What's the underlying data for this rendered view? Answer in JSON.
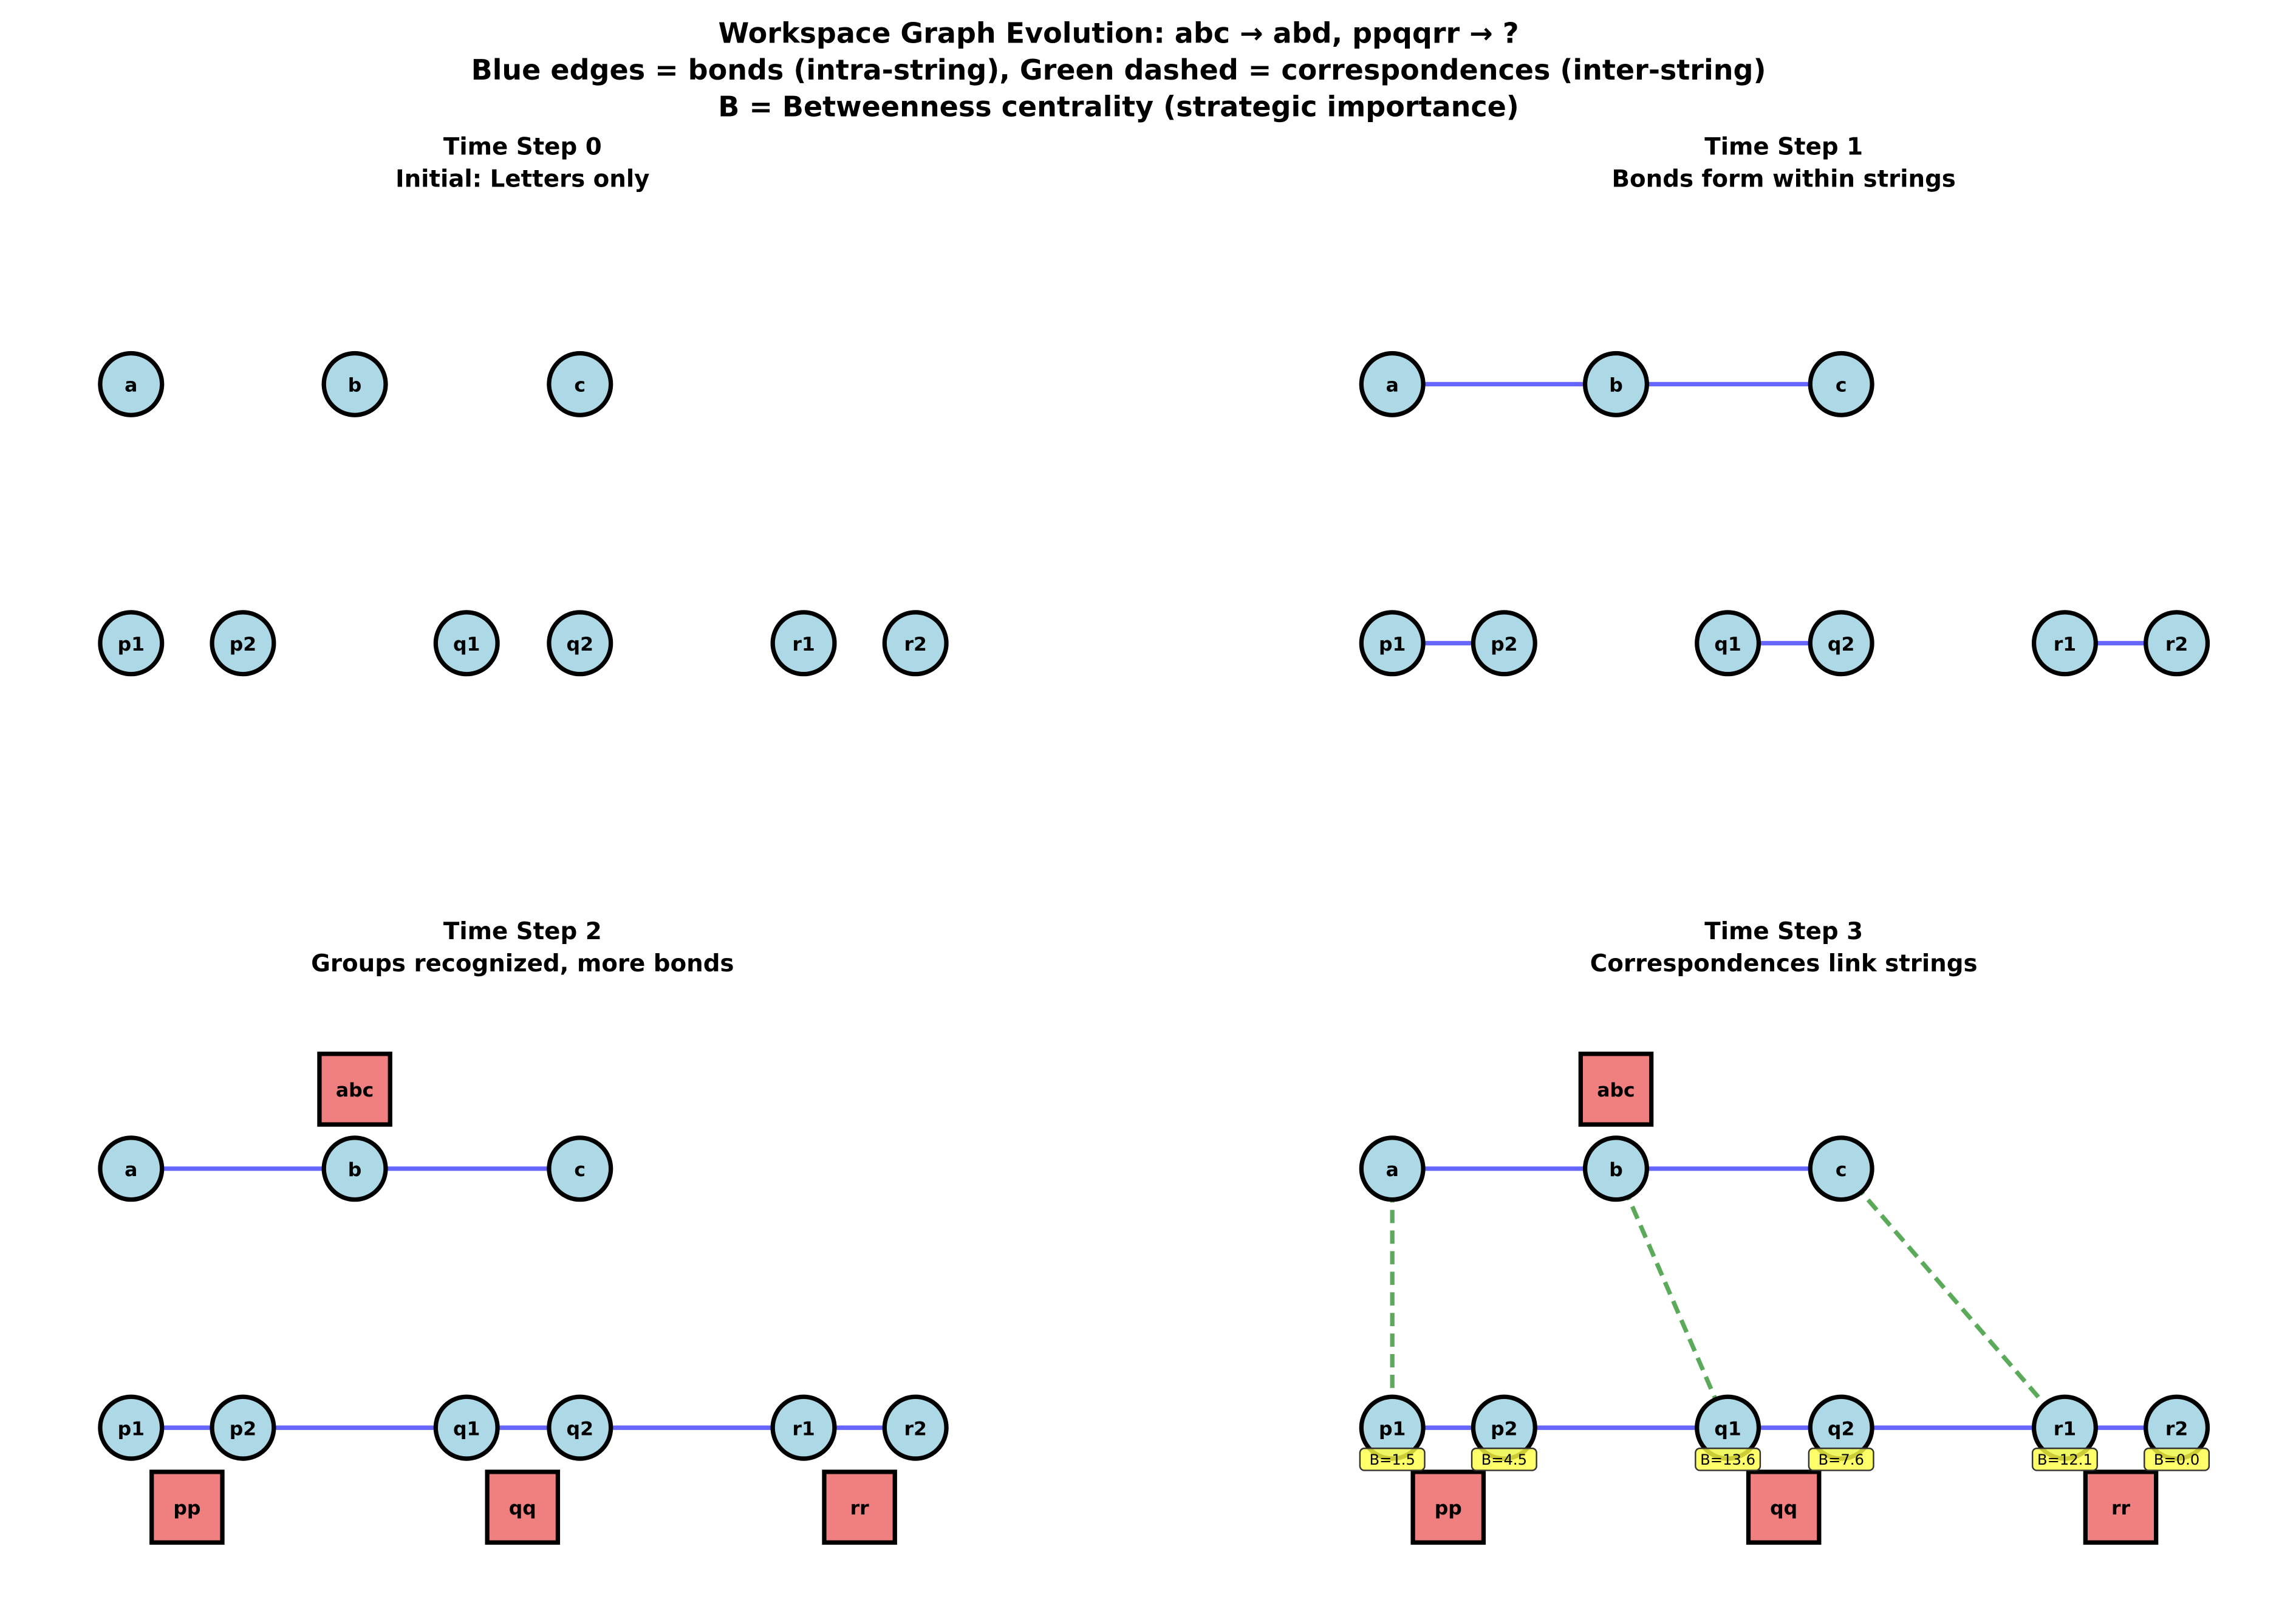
{
  "title_lines": [
    "Workspace Graph Evolution: abc → abd, ppqqrr → ?",
    "Blue edges = bonds (intra-string), Green dashed = correspondences (inter-string)",
    "B = Betweenness centrality (strategic importance)"
  ],
  "colors": {
    "node_fill": "#add8e6",
    "group_fill": "#f08080",
    "bond": "#6666ff",
    "correspondence": "#5aaa5a",
    "betweenness_label_fill": "#ffff44"
  },
  "nodes": [
    "a",
    "b",
    "c",
    "p1",
    "p2",
    "q1",
    "q2",
    "r1",
    "r2"
  ],
  "panels": [
    {
      "title": "Time Step 0",
      "subtitle": "Initial: Letters only",
      "bonds": [],
      "correspondences": [],
      "groups": [],
      "betweenness": {}
    },
    {
      "title": "Time Step 1",
      "subtitle": "Bonds form within strings",
      "bonds": [
        [
          "a",
          "b"
        ],
        [
          "b",
          "c"
        ],
        [
          "p1",
          "p2"
        ],
        [
          "q1",
          "q2"
        ],
        [
          "r1",
          "r2"
        ]
      ],
      "correspondences": [],
      "groups": [],
      "betweenness": {}
    },
    {
      "title": "Time Step 2",
      "subtitle": "Groups recognized, more bonds",
      "bonds": [
        [
          "a",
          "b"
        ],
        [
          "b",
          "c"
        ],
        [
          "p1",
          "p2"
        ],
        [
          "p2",
          "q1"
        ],
        [
          "q1",
          "q2"
        ],
        [
          "q2",
          "r1"
        ],
        [
          "r1",
          "r2"
        ]
      ],
      "correspondences": [],
      "groups": [
        "abc",
        "pp",
        "qq",
        "rr"
      ],
      "betweenness": {}
    },
    {
      "title": "Time Step 3",
      "subtitle": "Correspondences link strings",
      "bonds": [
        [
          "a",
          "b"
        ],
        [
          "b",
          "c"
        ],
        [
          "p1",
          "p2"
        ],
        [
          "p2",
          "q1"
        ],
        [
          "q1",
          "q2"
        ],
        [
          "q2",
          "r1"
        ],
        [
          "r1",
          "r2"
        ]
      ],
      "correspondences": [
        [
          "a",
          "p1"
        ],
        [
          "b",
          "q1"
        ],
        [
          "c",
          "r1"
        ]
      ],
      "groups": [
        "abc",
        "pp",
        "qq",
        "rr"
      ],
      "betweenness": {
        "p1": "B=1.5",
        "p2": "B=4.5",
        "q1": "B=13.6",
        "q2": "B=7.6",
        "r1": "B=12.1",
        "r2": "B=0.0"
      }
    }
  ]
}
